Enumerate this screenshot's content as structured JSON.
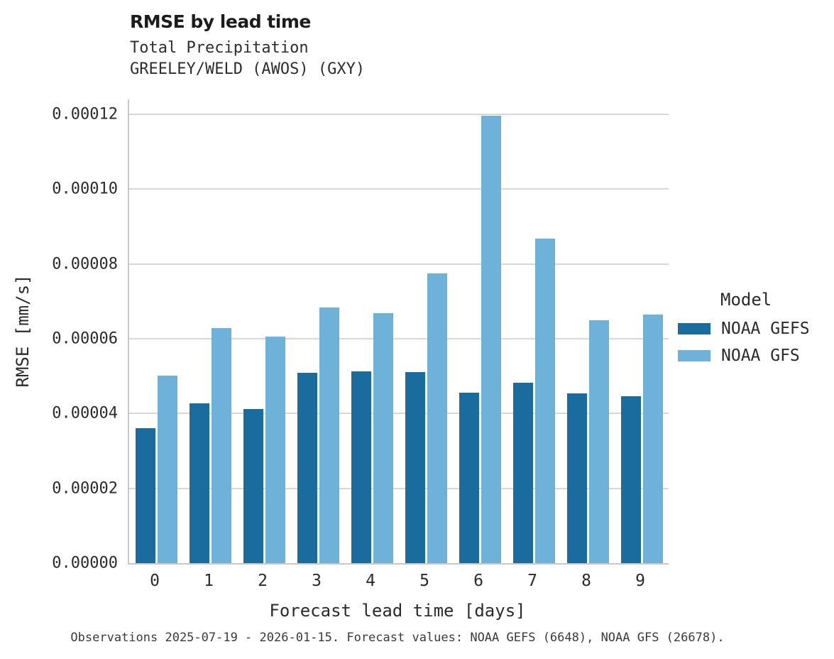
{
  "header": {
    "title": "RMSE by lead time",
    "subtitle_line1": "Total Precipitation",
    "subtitle_line2": "GREELEY/WELD (AWOS) (GXY)"
  },
  "colors": {
    "noaa_gefs": "#1a6c9e",
    "noaa_gfs": "#6eb2d9",
    "gridline": "#d8d8d8",
    "spine": "#c9c9c9"
  },
  "chart_data": {
    "type": "bar",
    "title": "RMSE by lead time",
    "subtitle": [
      "Total Precipitation",
      "GREELEY/WELD (AWOS) (GXY)"
    ],
    "categories": [
      "0",
      "1",
      "2",
      "3",
      "4",
      "5",
      "6",
      "7",
      "8",
      "9"
    ],
    "series": [
      {
        "name": "NOAA GEFS",
        "color": "#1a6c9e",
        "values": [
          3.6e-05,
          4.27e-05,
          4.13e-05,
          5.09e-05,
          5.12e-05,
          5.1e-05,
          4.55e-05,
          4.82e-05,
          4.53e-05,
          4.46e-05
        ]
      },
      {
        "name": "NOAA GFS",
        "color": "#6eb2d9",
        "values": [
          5.01e-05,
          6.28e-05,
          6.05e-05,
          6.83e-05,
          6.69e-05,
          7.74e-05,
          0.0001197,
          8.67e-05,
          6.5e-05,
          6.64e-05
        ]
      }
    ],
    "xlabel": "Forecast lead time [days]",
    "ylabel": "RMSE [mm/s]",
    "ylim": [
      0,
      0.000124
    ],
    "yticks": [
      0.0,
      2e-05,
      4e-05,
      6e-05,
      8e-05,
      0.0001,
      0.00012
    ],
    "ytick_labels": [
      "0.00000",
      "0.00002",
      "0.00004",
      "0.00006",
      "0.00008",
      "0.00010",
      "0.00012"
    ],
    "grid": "horizontal",
    "legend_title": "Model",
    "legend_position": "right"
  },
  "legend": {
    "title": "Model",
    "entries": [
      {
        "label": "NOAA GEFS",
        "color": "#1a6c9e"
      },
      {
        "label": "NOAA GFS",
        "color": "#6eb2d9"
      }
    ]
  },
  "footer": {
    "note": "Observations 2025-07-19 - 2026-01-15. Forecast values: NOAA GEFS (6648), NOAA GFS (26678)."
  }
}
